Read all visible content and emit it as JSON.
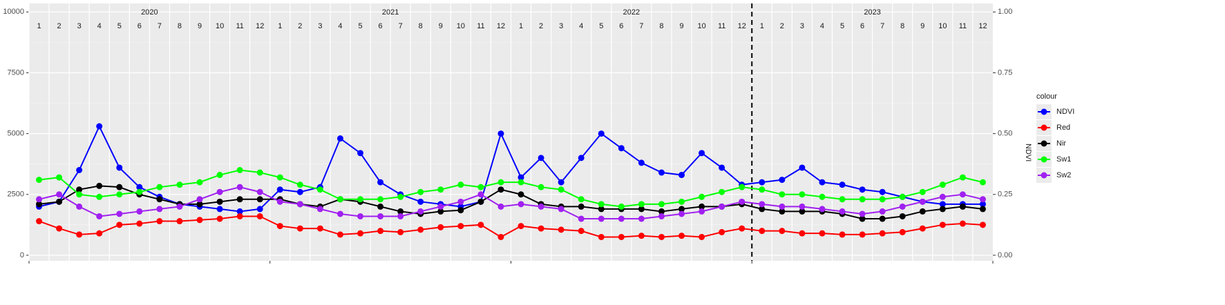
{
  "chart_data": {
    "type": "line",
    "years": [
      "2020",
      "2021",
      "2022",
      "2023"
    ],
    "months": [
      "1",
      "2",
      "3",
      "4",
      "5",
      "6",
      "7",
      "8",
      "9",
      "10",
      "11",
      "12"
    ],
    "x": [
      "2020-01",
      "2020-02",
      "2020-03",
      "2020-04",
      "2020-05",
      "2020-06",
      "2020-07",
      "2020-08",
      "2020-09",
      "2020-10",
      "2020-11",
      "2020-12",
      "2021-01",
      "2021-02",
      "2021-03",
      "2021-04",
      "2021-05",
      "2021-06",
      "2021-07",
      "2021-08",
      "2021-09",
      "2021-10",
      "2021-11",
      "2021-12",
      "2022-01",
      "2022-02",
      "2022-03",
      "2022-04",
      "2022-05",
      "2022-06",
      "2022-07",
      "2022-08",
      "2022-09",
      "2022-10",
      "2022-11",
      "2022-12",
      "2023-01",
      "2023-02",
      "2023-03",
      "2023-04",
      "2023-05",
      "2023-06",
      "2023-07",
      "2023-08",
      "2023-09",
      "2023-10",
      "2023-11",
      "2023-12"
    ],
    "xlim": [
      "2020-01",
      "2023-12"
    ],
    "vline": "2023-01",
    "y2_label": "NDVI",
    "legend_title": "colour",
    "legend": "right",
    "grid": true,
    "ylim": [
      -230,
      10350
    ],
    "yticks": [
      0,
      2500,
      5000,
      7500,
      10000
    ],
    "y2lim": [
      -0.023,
      1.035
    ],
    "y2ticks": [
      {
        "value": 0,
        "label": "0.00"
      },
      {
        "value": 0.25,
        "label": "0.25"
      },
      {
        "value": 0.5,
        "label": "0.50"
      },
      {
        "value": 0.75,
        "label": "0.75"
      },
      {
        "value": 1,
        "label": "1.00"
      }
    ],
    "series": [
      {
        "name": "NDVI",
        "color": "#0000ff",
        "axis": "y2",
        "values": [
          0.2,
          0.22,
          0.35,
          0.53,
          0.36,
          0.28,
          0.24,
          0.21,
          0.2,
          0.19,
          0.18,
          0.19,
          0.27,
          0.26,
          0.28,
          0.48,
          0.42,
          0.3,
          0.25,
          0.22,
          0.21,
          0.2,
          0.22,
          0.5,
          0.32,
          0.4,
          0.3,
          0.4,
          0.5,
          0.44,
          0.38,
          0.34,
          0.33,
          0.42,
          0.36,
          0.29,
          0.3,
          0.31,
          0.36,
          0.3,
          0.29,
          0.27,
          0.26,
          0.24,
          0.22,
          0.21,
          0.21,
          0.21
        ]
      },
      {
        "name": "Red",
        "color": "#ff0000",
        "values": [
          1400,
          1100,
          850,
          900,
          1250,
          1300,
          1400,
          1400,
          1450,
          1500,
          1600,
          1600,
          1200,
          1100,
          1100,
          850,
          900,
          1000,
          950,
          1050,
          1150,
          1200,
          1250,
          750,
          1200,
          1100,
          1050,
          1000,
          750,
          750,
          800,
          750,
          800,
          750,
          950,
          1100,
          1000,
          1000,
          900,
          900,
          850,
          850,
          900,
          950,
          1100,
          1250,
          1300,
          1250
        ]
      },
      {
        "name": "Nir",
        "color": "#000000",
        "values": [
          2100,
          2200,
          2700,
          2850,
          2800,
          2500,
          2300,
          2100,
          2100,
          2200,
          2300,
          2300,
          2300,
          2100,
          2000,
          2300,
          2200,
          2000,
          1800,
          1700,
          1800,
          1850,
          2200,
          2700,
          2500,
          2100,
          2000,
          2000,
          1900,
          1900,
          1900,
          1800,
          1900,
          2000,
          2000,
          2100,
          1900,
          1800,
          1800,
          1800,
          1700,
          1500,
          1500,
          1600,
          1800,
          1900,
          2000,
          1900
        ]
      },
      {
        "name": "Sw1",
        "color": "#00ff00",
        "values": [
          3100,
          3200,
          2500,
          2400,
          2500,
          2600,
          2800,
          2900,
          3000,
          3300,
          3500,
          3400,
          3200,
          2900,
          2700,
          2300,
          2300,
          2300,
          2400,
          2600,
          2700,
          2900,
          2800,
          3000,
          3000,
          2800,
          2700,
          2300,
          2100,
          2000,
          2100,
          2100,
          2200,
          2400,
          2600,
          2800,
          2700,
          2500,
          2500,
          2400,
          2300,
          2300,
          2300,
          2400,
          2600,
          2900,
          3200,
          3000
        ]
      },
      {
        "name": "Sw2",
        "color": "#a020f0",
        "values": [
          2300,
          2500,
          2000,
          1600,
          1700,
          1800,
          1900,
          2000,
          2300,
          2600,
          2800,
          2600,
          2200,
          2100,
          1900,
          1700,
          1600,
          1600,
          1600,
          1800,
          2000,
          2200,
          2500,
          2000,
          2100,
          2000,
          1900,
          1500,
          1500,
          1500,
          1500,
          1600,
          1700,
          1800,
          2000,
          2200,
          2100,
          2000,
          2000,
          1900,
          1800,
          1700,
          1800,
          2000,
          2200,
          2400,
          2500,
          2300
        ]
      }
    ]
  }
}
